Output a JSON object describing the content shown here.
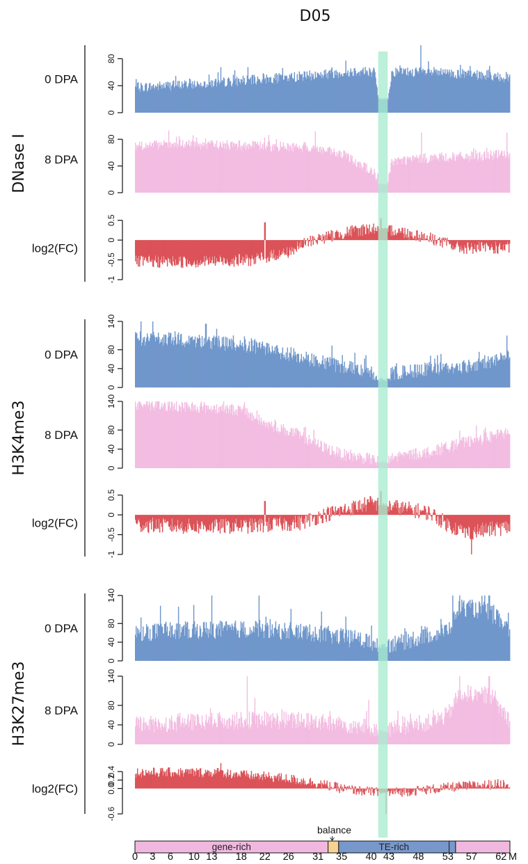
{
  "chart_data": {
    "type": "bar",
    "title": "D05",
    "x_axis": {
      "unit_label": "M",
      "ticks": [
        "0",
        "3",
        "6",
        "10",
        "13",
        "18",
        "22",
        "26",
        "31",
        "35",
        "40",
        "43",
        "48",
        "53",
        "57",
        "62"
      ],
      "range": [
        0,
        63.5
      ]
    },
    "highlight_region": {
      "start": 41.2,
      "end": 42.8,
      "color": "#a8ecd0"
    },
    "regions": [
      {
        "name": "gene-rich",
        "start": 0,
        "end": 32.7,
        "color": "#f0b8df"
      },
      {
        "name": "balance",
        "start": 32.7,
        "end": 34.5,
        "color": "#f6d38f"
      },
      {
        "name": "TE-rich",
        "start": 34.5,
        "end": 53.2,
        "color": "#7898cc"
      },
      {
        "name": "",
        "start": 53.2,
        "end": 54.3,
        "color": "#7898cc"
      },
      {
        "name": "",
        "start": 54.3,
        "end": 63.5,
        "color": "#f0b8df"
      }
    ],
    "region_annotation": {
      "label": "balance",
      "at": 33.4
    },
    "groups": [
      {
        "name": "DNase I",
        "tracks": [
          {
            "label": "0 DPA",
            "kind": "signal",
            "color": "#7097cb",
            "ylim": [
              0,
              100
            ],
            "ticks": [
              0,
              40,
              80
            ],
            "profile": [
              [
                0,
                35
              ],
              [
                10,
                40
              ],
              [
                20,
                46
              ],
              [
                30,
                53
              ],
              [
                38,
                60
              ],
              [
                40.5,
                58
              ],
              [
                41.2,
                20
              ],
              [
                42.8,
                20
              ],
              [
                43.5,
                58
              ],
              [
                48,
                58
              ],
              [
                55,
                55
              ],
              [
                63.5,
                50
              ]
            ],
            "noise": 11,
            "spikes": [
              [
                48.4,
                100
              ]
            ]
          },
          {
            "label": "8 DPA",
            "kind": "signal",
            "color": "#f3bde2",
            "ylim": [
              0,
              100
            ],
            "ticks": [
              0,
              40,
              80
            ],
            "profile": [
              [
                0,
                68
              ],
              [
                10,
                70
              ],
              [
                20,
                68
              ],
              [
                30,
                65
              ],
              [
                36,
                52
              ],
              [
                40,
                30
              ],
              [
                41.2,
                12
              ],
              [
                42.8,
                12
              ],
              [
                43.5,
                45
              ],
              [
                50,
                50
              ],
              [
                57,
                52
              ],
              [
                63.5,
                55
              ]
            ],
            "noise": 11,
            "spikes": [
              [
                30.5,
                92
              ],
              [
                48.5,
                90
              ],
              [
                63,
                90
              ]
            ]
          },
          {
            "label": "log2(FC)",
            "kind": "fc",
            "color": "#db5358",
            "ylim": [
              -1,
              0.6
            ],
            "ticks": [
              -1,
              -0.5,
              0,
              0.5
            ],
            "tick_labels": [
              "-1",
              "-0.5",
              "0",
              "0.5"
            ],
            "profile": [
              [
                0,
                -0.55
              ],
              [
                10,
                -0.55
              ],
              [
                20,
                -0.5
              ],
              [
                26,
                -0.3
              ],
              [
                30,
                0
              ],
              [
                36,
                0.2
              ],
              [
                40,
                0.3
              ],
              [
                44,
                0.25
              ],
              [
                50,
                0.05
              ],
              [
                55,
                -0.2
              ],
              [
                63.5,
                -0.2
              ]
            ],
            "noise": 0.16,
            "spikes": [
              [
                22,
                0.45
              ],
              [
                41.6,
                0.55
              ]
            ]
          }
        ]
      },
      {
        "name": "H3K4me3",
        "tracks": [
          {
            "label": "0 DPA",
            "kind": "signal",
            "color": "#7097cb",
            "ylim": [
              0,
              140
            ],
            "ticks": [
              0,
              40,
              80,
              140
            ],
            "profile": [
              [
                0,
                100
              ],
              [
                10,
                95
              ],
              [
                18,
                85
              ],
              [
                25,
                70
              ],
              [
                31,
                50
              ],
              [
                36,
                38
              ],
              [
                40,
                30
              ],
              [
                41.2,
                15
              ],
              [
                42.8,
                15
              ],
              [
                44,
                25
              ],
              [
                50,
                35
              ],
              [
                56,
                40
              ],
              [
                63.5,
                60
              ]
            ],
            "noise": 22,
            "spikes": [
              [
                1,
                140
              ],
              [
                3,
                140
              ],
              [
                12,
                135
              ],
              [
                63,
                110
              ]
            ]
          },
          {
            "label": "8 DPA",
            "kind": "signal",
            "color": "#f3bde2",
            "ylim": [
              0,
              140
            ],
            "ticks": [
              0,
              40,
              80,
              140
            ],
            "profile": [
              [
                0,
                130
              ],
              [
                10,
                125
              ],
              [
                18,
                118
              ],
              [
                22,
                90
              ],
              [
                27,
                70
              ],
              [
                31,
                45
              ],
              [
                35,
                25
              ],
              [
                40,
                15
              ],
              [
                41.2,
                10
              ],
              [
                42.8,
                10
              ],
              [
                44,
                20
              ],
              [
                50,
                30
              ],
              [
                56,
                50
              ],
              [
                63.5,
                70
              ]
            ],
            "noise": 18,
            "spikes": [
              [
                2,
                140
              ],
              [
                15,
                140
              ]
            ]
          },
          {
            "label": "log2(FC)",
            "kind": "fc",
            "color": "#db5358",
            "ylim": [
              -1,
              0.6
            ],
            "ticks": [
              -1,
              -0.5,
              0,
              0.5
            ],
            "tick_labels": [
              "-1",
              "-0.5",
              "0",
              "0.5"
            ],
            "profile": [
              [
                0,
                -0.25
              ],
              [
                10,
                -0.3
              ],
              [
                20,
                -0.28
              ],
              [
                28,
                -0.2
              ],
              [
                32,
                0
              ],
              [
                36,
                0.15
              ],
              [
                40,
                0.3
              ],
              [
                44,
                0.2
              ],
              [
                50,
                0.05
              ],
              [
                53,
                -0.25
              ],
              [
                56,
                -0.45
              ],
              [
                63.5,
                -0.3
              ]
            ],
            "noise": 0.2,
            "spikes": [
              [
                22,
                0.35
              ],
              [
                41.6,
                0.6
              ],
              [
                57,
                -1
              ]
            ]
          }
        ]
      },
      {
        "name": "H3K27me3",
        "tracks": [
          {
            "label": "0 DPA",
            "kind": "signal",
            "color": "#7097cb",
            "ylim": [
              0,
              140
            ],
            "ticks": [
              0,
              40,
              80,
              140
            ],
            "profile": [
              [
                0,
                55
              ],
              [
                10,
                60
              ],
              [
                20,
                62
              ],
              [
                30,
                55
              ],
              [
                35,
                45
              ],
              [
                40,
                35
              ],
              [
                41.2,
                30
              ],
              [
                42.8,
                30
              ],
              [
                45,
                35
              ],
              [
                50,
                50
              ],
              [
                53,
                60
              ],
              [
                55,
                110
              ],
              [
                60,
                100
              ],
              [
                63.5,
                60
              ]
            ],
            "noise": 28,
            "spikes": [
              [
                13,
                140
              ],
              [
                21,
                140
              ],
              [
                55,
                140
              ],
              [
                60,
                140
              ]
            ]
          },
          {
            "label": "8 DPA",
            "kind": "signal",
            "color": "#f3bde2",
            "ylim": [
              0,
              140
            ],
            "ticks": [
              0,
              40,
              80,
              140
            ],
            "profile": [
              [
                0,
                35
              ],
              [
                10,
                40
              ],
              [
                20,
                45
              ],
              [
                30,
                42
              ],
              [
                35,
                35
              ],
              [
                40,
                30
              ],
              [
                41.2,
                25
              ],
              [
                42.8,
                25
              ],
              [
                45,
                30
              ],
              [
                50,
                40
              ],
              [
                53,
                55
              ],
              [
                55,
                100
              ],
              [
                60,
                95
              ],
              [
                63.5,
                45
              ]
            ],
            "noise": 26,
            "spikes": [
              [
                19,
                140
              ],
              [
                55,
                140
              ],
              [
                60,
                140
              ]
            ]
          },
          {
            "label": "log2(FC)",
            "kind": "fc",
            "color": "#db5358",
            "ylim": [
              -0.6,
              0.6
            ],
            "ticks": [
              -0.6,
              0,
              0.2,
              0.4
            ],
            "tick_labels": [
              "-0.6",
              "0.0",
              "0.2",
              "0.4"
            ],
            "profile": [
              [
                0,
                0.38
              ],
              [
                8,
                0.38
              ],
              [
                14,
                0.38
              ],
              [
                20,
                0.3
              ],
              [
                25,
                0.25
              ],
              [
                30,
                0.15
              ],
              [
                35,
                0
              ],
              [
                38,
                -0.05
              ],
              [
                42,
                -0.1
              ],
              [
                45,
                -0.08
              ],
              [
                50,
                -0.02
              ],
              [
                55,
                0.05
              ],
              [
                63.5,
                0.12
              ]
            ],
            "noise": 0.12,
            "spikes": [
              [
                14.5,
                0.6
              ],
              [
                42.5,
                -0.6
              ]
            ]
          }
        ]
      }
    ]
  }
}
